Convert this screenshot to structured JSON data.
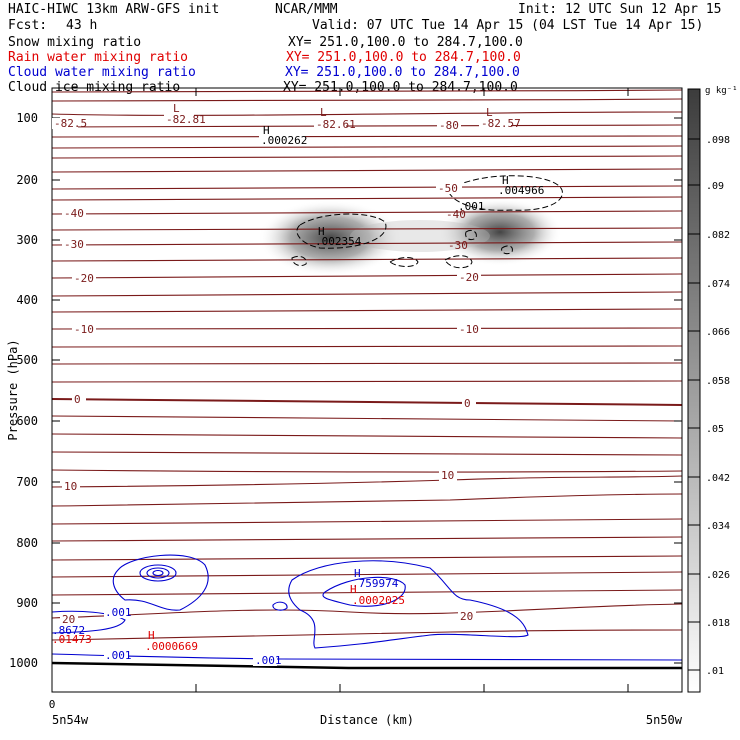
{
  "header": {
    "model": "HAIC-HIWC 13km ARW-GFS init",
    "org": "NCAR/MMM",
    "init": "Init: 12 UTC Sun 12 Apr 15",
    "fcst_label": "Fcst:",
    "fcst_value": "43 h",
    "valid": "Valid: 07 UTC Tue 14 Apr 15 (04 LST Tue 14 Apr 15)",
    "fields": [
      {
        "name": "Snow mixing ratio",
        "xy": "XY= 251.0,100.0 to 284.7,100.0",
        "color": "#000000"
      },
      {
        "name": "Rain water mixing ratio",
        "xy": "XY= 251.0,100.0 to 284.7,100.0",
        "color": "#e00000"
      },
      {
        "name": "Cloud water mixing ratio",
        "xy": "XY= 251.0,100.0 to 284.7,100.0",
        "color": "#0000d0"
      },
      {
        "name": "Cloud ice mixing ratio",
        "xy": "XY= 251.0,100.0 to 284.7,100.0",
        "color": "#000000"
      }
    ]
  },
  "chart_data": {
    "type": "contour cross-section",
    "xlabel": "Distance (km)",
    "ylabel": "Pressure (hPa)",
    "x_ticks": [
      "0"
    ],
    "x_start_label": "5n54w",
    "x_end_label": "5n50w",
    "y_ticks": [
      100,
      200,
      300,
      400,
      500,
      600,
      700,
      800,
      900,
      1000
    ],
    "colorbar": {
      "unit": "g kg⁻¹",
      "ticks": [
        ".098",
        ".09",
        ".082",
        ".074",
        ".066",
        ".058",
        ".05",
        ".042",
        ".034",
        ".026",
        ".018",
        ".01"
      ]
    },
    "temperature_labels": [
      "-82.5",
      "-82.81",
      "-82.61",
      "-80",
      "-82.57",
      "-50",
      "-40",
      "-40",
      "-30",
      "-30",
      "-20",
      "-20",
      "-10",
      "-10",
      "0",
      "0",
      "10",
      "10",
      "20",
      "20"
    ],
    "extrema": [
      {
        "kind": "L",
        "value": "-82.81"
      },
      {
        "kind": "L",
        "value": "-82.61"
      },
      {
        "kind": "L",
        "value": "-82.57"
      },
      {
        "kind": "H",
        "value": ".000262"
      },
      {
        "kind": "H",
        "value": ".002354"
      },
      {
        "kind": "H",
        "value": ".004966"
      },
      {
        "kind": "H",
        "value": ".759974"
      },
      {
        "kind": "H",
        "value": ".0002025"
      },
      {
        "kind": "H",
        "value": ".0000669"
      }
    ],
    "contour_labels": {
      "cloud_ice": ".001",
      "cloud_water": [
        ".001",
        ".001",
        ".001"
      ],
      "left_edge": [
        ".8672",
        ".01473"
      ]
    }
  }
}
